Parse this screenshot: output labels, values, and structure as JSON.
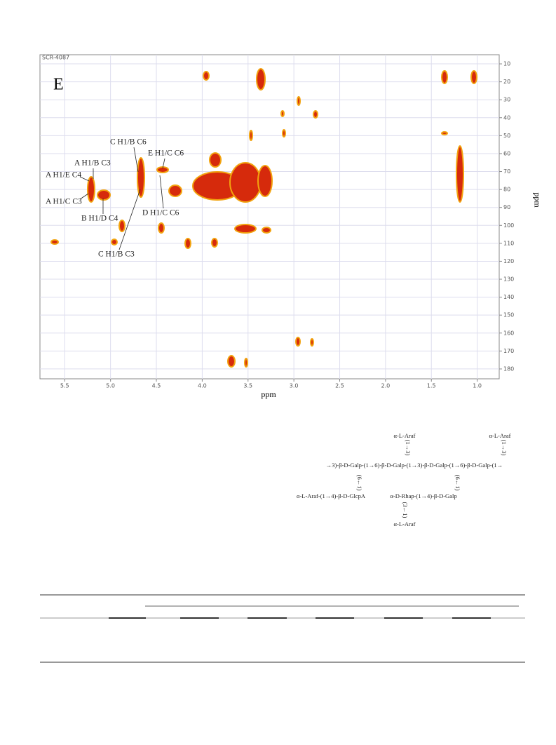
{
  "spectrum": {
    "code": "SCR-4087",
    "panel": "E",
    "x_label": "ppm",
    "y_label": "ppm",
    "xlim": [
      5.77,
      0.76
    ],
    "ylim": [
      4.9,
      185.5
    ],
    "xticks": [
      5.5,
      {
        "value": 5,
        "label": "5.0"
      },
      4.5,
      {
        "value": 4,
        "label": "4.0"
      },
      3.5,
      {
        "value": 3,
        "label": "3.0"
      },
      2.5,
      {
        "value": 2,
        "label": "2.0"
      },
      1.5,
      {
        "value": 1,
        "label": "1.0"
      }
    ],
    "yticks": [
      10,
      20,
      30,
      40,
      50,
      60,
      70,
      80,
      90,
      100,
      110,
      120,
      130,
      140,
      150,
      160,
      170,
      180
    ],
    "annotations": [
      "C H1/B C6",
      "A H1/B C3",
      "E H1/C C6",
      "A H1/E C4",
      "A H1/C C3",
      "B H1/D C4",
      "D H1/C C6",
      "C H1/B C3"
    ]
  },
  "structure": {
    "branch_top_1": "α-L-Araf",
    "link_top_1": "(1→3)",
    "branch_top_2": "α-L-Araf",
    "link_top_2": "(1→3)",
    "backbone": "→3)-β-D-Galp-(1→6)-β-D-Galp-(1→3)-β-D-Galp-(1→6)-β-D-Galp-(1→",
    "link_low_1": "(6←1)",
    "link_low_2": "(6←1)",
    "side_1": "α-L-Araf-(1→4)-β-D-GlcpA",
    "side_2": "α-D-Rhap-(1→4)-β-D-Galp",
    "link_bottom": "(3←1)",
    "branch_bottom": "α-L-Araf"
  }
}
